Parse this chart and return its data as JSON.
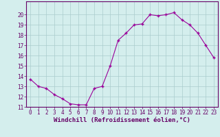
{
  "x": [
    0,
    1,
    2,
    3,
    4,
    5,
    6,
    7,
    8,
    9,
    10,
    11,
    12,
    13,
    14,
    15,
    16,
    17,
    18,
    19,
    20,
    21,
    22,
    23
  ],
  "y": [
    13.7,
    13.0,
    12.8,
    12.2,
    11.8,
    11.3,
    11.2,
    11.2,
    12.8,
    13.0,
    15.0,
    17.5,
    18.2,
    19.0,
    19.1,
    20.0,
    19.9,
    20.0,
    20.2,
    19.5,
    19.0,
    18.2,
    17.0,
    15.8
  ],
  "line_color": "#990099",
  "marker": "+",
  "bg_color": "#d4eeed",
  "grid_color": "#aacccc",
  "xlabel": "Windchill (Refroidissement éolien,°C)",
  "xlabel_color": "#660066",
  "tick_color": "#660066",
  "ylim": [
    11,
    21
  ],
  "xlim_min": -0.5,
  "xlim_max": 23.5,
  "yticks": [
    11,
    12,
    13,
    14,
    15,
    16,
    17,
    18,
    19,
    20
  ],
  "xticks": [
    0,
    1,
    2,
    3,
    4,
    5,
    6,
    7,
    8,
    9,
    10,
    11,
    12,
    13,
    14,
    15,
    16,
    17,
    18,
    19,
    20,
    21,
    22,
    23
  ],
  "tick_fontsize": 5.5,
  "xlabel_fontsize": 6.5
}
